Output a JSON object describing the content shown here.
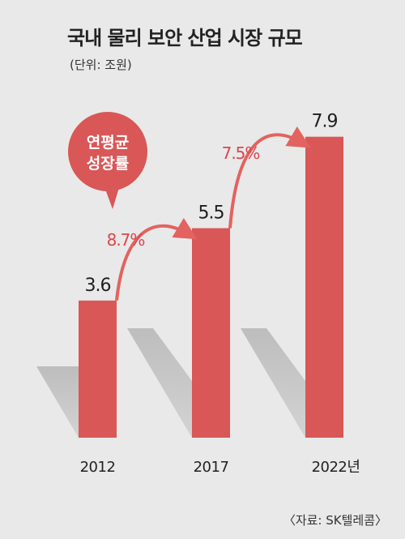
{
  "chart_data": {
    "type": "bar",
    "title": "국내 물리 보안 산업 시장 규모",
    "unit": "(단위: 조원)",
    "categories": [
      "2012",
      "2017",
      "2022년"
    ],
    "values": [
      3.6,
      5.5,
      7.9
    ],
    "value_labels": [
      "3.6",
      "5.5",
      "7.9"
    ],
    "growth_rates": [
      "8.7%",
      "7.5%"
    ],
    "callout": [
      "연평균",
      "성장률"
    ],
    "source": "〈자료: SK텔레콤〉",
    "colors": {
      "bar": "#d95757",
      "shadow": "#c4c4c4",
      "accent": "#d9474c",
      "background": "#e9e9e9"
    }
  }
}
